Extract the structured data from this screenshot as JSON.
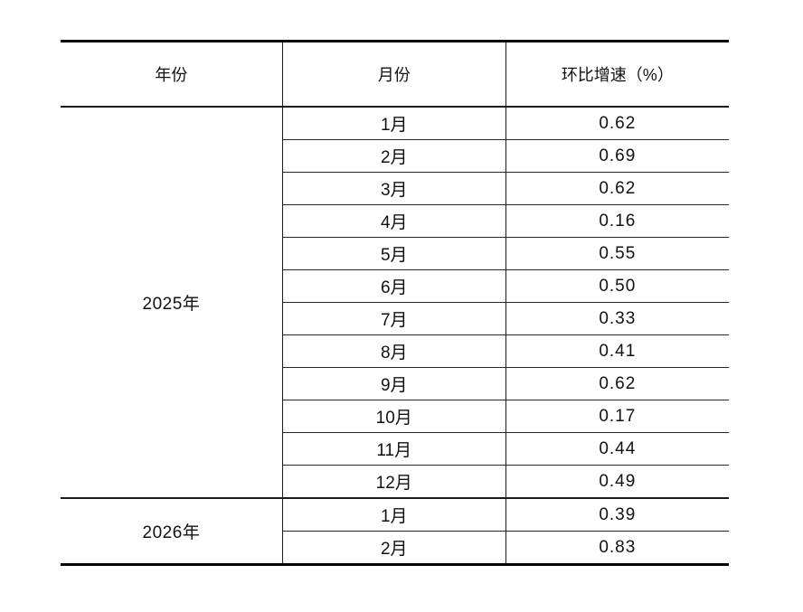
{
  "page": {
    "background": "#ffffff",
    "border_color": "#1b1b1b",
    "outer_rule_color": "#000000",
    "text_color": "#111111"
  },
  "table": {
    "columns": [
      "年份",
      "月份",
      "环比增速（%）"
    ],
    "sections": [
      {
        "year": "2025年",
        "rows": [
          {
            "month": "1月",
            "value": "0.62"
          },
          {
            "month": "2月",
            "value": "0.69"
          },
          {
            "month": "3月",
            "value": "0.62"
          },
          {
            "month": "4月",
            "value": "0.16"
          },
          {
            "month": "5月",
            "value": "0.55"
          },
          {
            "month": "6月",
            "value": "0.50"
          },
          {
            "month": "7月",
            "value": "0.33"
          },
          {
            "month": "8月",
            "value": "0.41"
          },
          {
            "month": "9月",
            "value": "0.62"
          },
          {
            "month": "10月",
            "value": "0.17"
          },
          {
            "month": "11月",
            "value": "0.44"
          },
          {
            "month": "12月",
            "value": "0.49"
          }
        ]
      },
      {
        "year": "2026年",
        "rows": [
          {
            "month": "1月",
            "value": "0.39"
          },
          {
            "month": "2月",
            "value": "0.83"
          }
        ]
      }
    ]
  },
  "chart_data": {
    "type": "table",
    "title": "",
    "columns": [
      "年份",
      "月份",
      "环比增速（%）"
    ],
    "rows": [
      [
        "2025年",
        "1月",
        0.62
      ],
      [
        "2025年",
        "2月",
        0.69
      ],
      [
        "2025年",
        "3月",
        0.62
      ],
      [
        "2025年",
        "4月",
        0.16
      ],
      [
        "2025年",
        "5月",
        0.55
      ],
      [
        "2025年",
        "6月",
        0.5
      ],
      [
        "2025年",
        "7月",
        0.33
      ],
      [
        "2025年",
        "8月",
        0.41
      ],
      [
        "2025年",
        "9月",
        0.62
      ],
      [
        "2025年",
        "10月",
        0.17
      ],
      [
        "2025年",
        "11月",
        0.44
      ],
      [
        "2025年",
        "12月",
        0.49
      ],
      [
        "2026年",
        "1月",
        0.39
      ],
      [
        "2026年",
        "2月",
        0.83
      ]
    ]
  }
}
